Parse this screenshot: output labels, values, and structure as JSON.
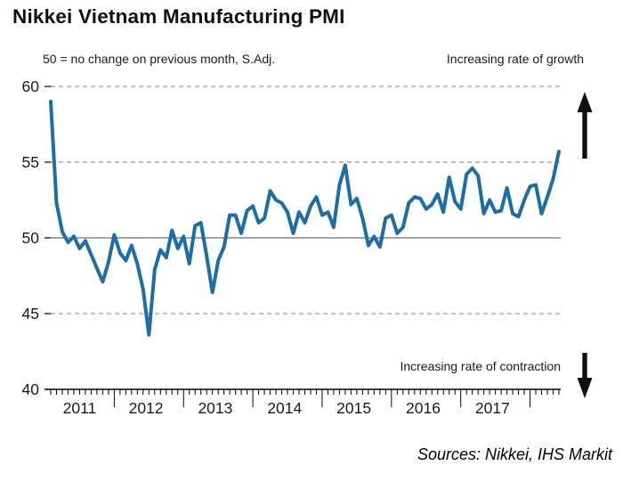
{
  "header": {
    "title": "Nikkei Vietnam Manufacturing PMI"
  },
  "chart": {
    "subtitle": "50 = no change on previous month, S.Adj.",
    "growth_label": "Increasing rate of growth",
    "contraction_label": "Increasing rate of contraction"
  },
  "footer": {
    "source": "Sources: Nikkei, IHS Markit"
  },
  "colors": {
    "line": "#1c6ea4",
    "grid": "#9a9a9a",
    "baseline": "#6e6e6e",
    "axis": "#000000",
    "arrow": "#111111",
    "text": "#1a1a1a"
  },
  "chart_data": {
    "type": "line",
    "title": "Nikkei Vietnam Manufacturing PMI",
    "ylabel": "PMI, 50 = no change on previous month, S.Adj.",
    "ylim": [
      40,
      60
    ],
    "yticks": [
      40,
      45,
      50,
      55,
      60
    ],
    "reference_line": 50,
    "x_start": "2011-02",
    "x_frequency": "monthly",
    "year_labels": [
      "2011",
      "2012",
      "2013",
      "2014",
      "2015",
      "2016",
      "2017"
    ],
    "legend": false,
    "grid": "dashed-horizontal",
    "series": [
      {
        "name": "Nikkei Vietnam Manufacturing PMI",
        "values": [
          59.0,
          52.3,
          50.4,
          49.7,
          50.1,
          49.3,
          49.8,
          48.9,
          48.0,
          47.1,
          48.4,
          50.2,
          49.0,
          48.5,
          49.5,
          48.3,
          46.6,
          43.6,
          47.9,
          49.2,
          48.7,
          50.5,
          49.3,
          50.1,
          48.3,
          50.8,
          51.0,
          48.8,
          46.4,
          48.5,
          49.4,
          51.5,
          51.5,
          50.3,
          51.8,
          52.1,
          51.0,
          51.3,
          53.1,
          52.5,
          52.3,
          51.7,
          50.3,
          51.7,
          51.0,
          52.1,
          52.7,
          51.5,
          51.7,
          50.7,
          53.5,
          54.8,
          52.2,
          52.6,
          51.3,
          49.5,
          50.1,
          49.4,
          51.3,
          51.5,
          50.3,
          50.7,
          52.3,
          52.7,
          52.6,
          51.9,
          52.2,
          52.9,
          51.7,
          54.0,
          52.4,
          51.9,
          54.2,
          54.6,
          54.1,
          51.6,
          52.5,
          51.7,
          51.8,
          53.3,
          51.6,
          51.4,
          52.5,
          53.4,
          53.5,
          51.6,
          52.7,
          53.9,
          55.7
        ]
      }
    ]
  }
}
